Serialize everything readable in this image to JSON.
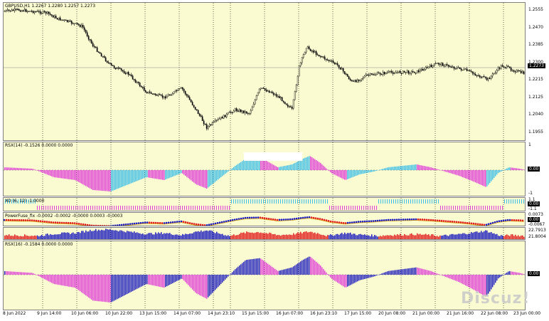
{
  "main": {
    "label": "GBPUSD,H1  1.2267 1.2280 1.2257 1.2273",
    "price_box": "1.2273",
    "price_scale": [
      "1.2555",
      "1.2470",
      "1.2385",
      "1.2300",
      "1.2215",
      "1.2125",
      "1.2040",
      "1.1955"
    ]
  },
  "rsx14": {
    "label": "RSX(14) -0.1526 0.0000 0.0000",
    "scale_top": "1",
    "scale_bottom": "-1",
    "value": "0.00"
  },
  "xo": {
    "label": "XO (6, 12) -1.0000",
    "scale": [
      "1.1",
      "-1.1"
    ],
    "value": "0.00"
  },
  "powerfuse": {
    "label": "PowerFuse_fix -0.0002 -0.0002 -0.0000 0.0003 -0.0003",
    "scale": [
      "0.0073",
      "-0.0067"
    ],
    "value": "0.00"
  },
  "vol": {
    "label": "",
    "scale": [
      "22.7913",
      "21.8004"
    ]
  },
  "rsx16": {
    "label": "RSX(16) -0.1584 0.0000 0.0000",
    "value": "0.00"
  },
  "time_axis": [
    "8 Jun 2022",
    "9 Jun 14:00",
    "10 Jun 06:00",
    "10 Jun 22:00",
    "13 Jun 15:00",
    "14 Jun 07:00",
    "14 Jun 23:10",
    "15 Jun 15:00",
    "16 Jun 07:00",
    "16 Jun 23:10",
    "17 Jun 15:00",
    "20 Jun 08:00",
    "21 Jun 00:00",
    "21 Jun 16:00",
    "22 Jun 08:00",
    "23 Jun 00:00"
  ],
  "watermark": "Discuz!",
  "colors": {
    "bg": "#fbfbd2",
    "up": "#1e1ebe",
    "down": "#e01e1e",
    "magenta": "#e040d8",
    "cyan": "#40c0e8"
  }
}
